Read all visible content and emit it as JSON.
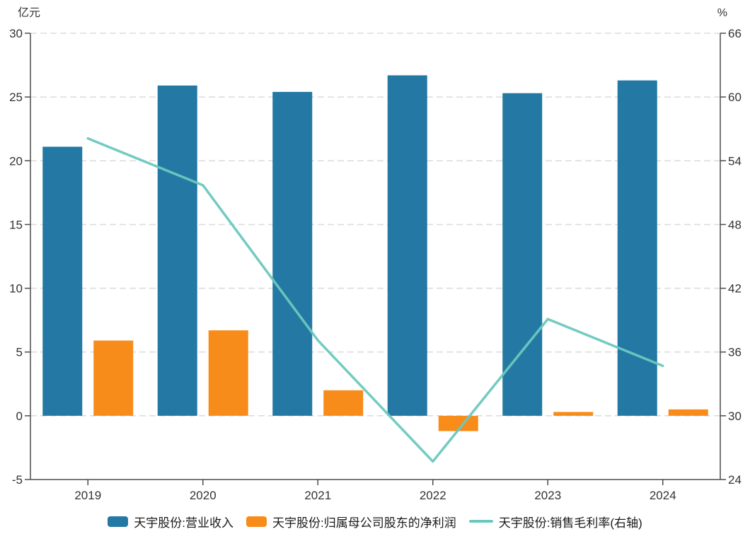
{
  "chart_data": {
    "type": "combo",
    "title": "",
    "categories": [
      "2019",
      "2020",
      "2021",
      "2022",
      "2023",
      "2024"
    ],
    "left_axis": {
      "unit": "亿元",
      "min": -5,
      "max": 30,
      "ticks": [
        30,
        25,
        20,
        15,
        10,
        5,
        0,
        -5
      ]
    },
    "right_axis": {
      "unit": "%",
      "min": 24,
      "max": 66,
      "ticks": [
        66,
        60,
        54,
        48,
        42,
        36,
        30,
        24
      ]
    },
    "series": [
      {
        "name": "天宇股份:营业收入",
        "type": "bar",
        "axis": "left",
        "color": "#2478A4",
        "values": [
          21.1,
          25.9,
          25.4,
          26.7,
          25.3,
          26.3
        ]
      },
      {
        "name": "天宇股份:归属母公司股东的净利润",
        "type": "bar",
        "axis": "left",
        "color": "#F78C1A",
        "values": [
          5.9,
          6.7,
          2.0,
          -1.2,
          0.3,
          0.5
        ]
      },
      {
        "name": "天宇股份:销售毛利率(右轴)",
        "type": "line",
        "axis": "right",
        "color": "#6CC8BF",
        "values": [
          56.1,
          51.7,
          37.1,
          25.7,
          39.1,
          34.7
        ]
      }
    ],
    "grid": {
      "show": true,
      "style": "dashed",
      "color": "#DDDDDD"
    },
    "axis_color": "#4D4D4D",
    "tick_label_color": "#333333",
    "legend_position": "bottom"
  }
}
